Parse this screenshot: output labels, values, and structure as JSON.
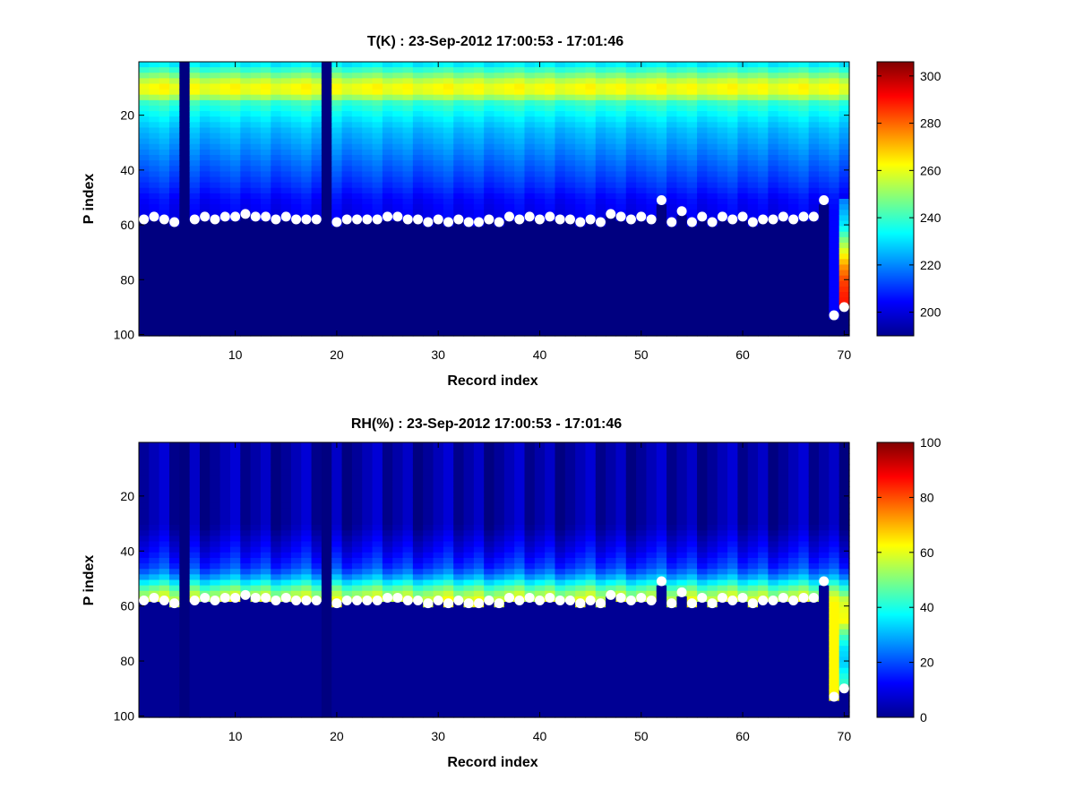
{
  "chart_data": [
    {
      "type": "heatmap",
      "title": "T(K) : 23-Sep-2012 17:00:53 - 17:01:46",
      "xlabel": "Record index",
      "ylabel": "P index",
      "xlim": [
        0.5,
        70.5
      ],
      "ylim": [
        0.5,
        100.5
      ],
      "y_reversed": true,
      "xticks": [
        10,
        20,
        30,
        40,
        50,
        60,
        70
      ],
      "yticks": [
        20,
        40,
        60,
        80,
        100
      ],
      "colormap": "jet",
      "clim": [
        190,
        306
      ],
      "colorbar_ticks": [
        200,
        220,
        240,
        260,
        280,
        300
      ],
      "missing_records": [
        5,
        19
      ],
      "field_profile": {
        "description": "approximate temperature (K) vs P index, above surface level",
        "p_index": [
          1,
          5,
          8,
          10,
          12,
          15,
          20,
          25,
          30,
          35,
          40,
          45,
          50,
          55,
          60
        ],
        "value": [
          232,
          248,
          260,
          263,
          258,
          240,
          232,
          226,
          222,
          218,
          214,
          210,
          205,
          203,
          203
        ]
      },
      "below_surface_value": 190,
      "record70_column": {
        "p_index": [
          50,
          60,
          65,
          70,
          75,
          80,
          85,
          90
        ],
        "value": [
          218,
          232,
          248,
          262,
          275,
          284,
          288,
          290
        ]
      },
      "surface_markers": {
        "x": [
          1,
          2,
          3,
          4,
          6,
          7,
          8,
          9,
          10,
          11,
          12,
          13,
          14,
          15,
          16,
          17,
          18,
          20,
          21,
          22,
          23,
          24,
          25,
          26,
          27,
          28,
          29,
          30,
          31,
          32,
          33,
          34,
          35,
          36,
          37,
          38,
          39,
          40,
          41,
          42,
          43,
          44,
          45,
          46,
          47,
          48,
          49,
          50,
          51,
          52,
          53,
          54,
          55,
          56,
          57,
          58,
          59,
          60,
          61,
          62,
          63,
          64,
          65,
          66,
          67,
          68,
          69,
          70
        ],
        "y": [
          58,
          57,
          58,
          59,
          58,
          57,
          58,
          57,
          57,
          56,
          57,
          57,
          58,
          57,
          58,
          58,
          58,
          59,
          58,
          58,
          58,
          58,
          57,
          57,
          58,
          58,
          59,
          58,
          59,
          58,
          59,
          59,
          58,
          59,
          57,
          58,
          57,
          58,
          57,
          58,
          58,
          59,
          58,
          59,
          56,
          57,
          58,
          57,
          58,
          51,
          59,
          55,
          59,
          57,
          59,
          57,
          58,
          57,
          59,
          58,
          58,
          57,
          58,
          57,
          57,
          51,
          93,
          90
        ]
      }
    },
    {
      "type": "heatmap",
      "title": "RH(%) : 23-Sep-2012 17:00:53 - 17:01:46",
      "xlabel": "Record index",
      "ylabel": "P index",
      "xlim": [
        0.5,
        70.5
      ],
      "ylim": [
        0.5,
        100.5
      ],
      "y_reversed": true,
      "xticks": [
        10,
        20,
        30,
        40,
        50,
        60,
        70
      ],
      "yticks": [
        20,
        40,
        60,
        80,
        100
      ],
      "colormap": "jet",
      "clim": [
        0,
        100
      ],
      "colorbar_ticks": [
        0,
        20,
        40,
        60,
        80,
        100
      ],
      "missing_records": [
        5,
        19
      ],
      "field_profile": {
        "description": "approximate relative humidity (%) vs P index, above surface level",
        "p_index": [
          1,
          30,
          35,
          40,
          45,
          48,
          50,
          52,
          54,
          56,
          58
        ],
        "value": [
          4,
          4,
          8,
          12,
          18,
          25,
          33,
          42,
          50,
          56,
          60
        ]
      },
      "below_surface_value": 2,
      "record70_column": {
        "p_index": [
          56,
          60,
          65,
          70,
          75,
          80,
          85,
          90
        ],
        "value": [
          55,
          60,
          62,
          45,
          35,
          32,
          40,
          45
        ]
      },
      "surface_markers": {
        "x": [
          1,
          2,
          3,
          4,
          6,
          7,
          8,
          9,
          10,
          11,
          12,
          13,
          14,
          15,
          16,
          17,
          18,
          20,
          21,
          22,
          23,
          24,
          25,
          26,
          27,
          28,
          29,
          30,
          31,
          32,
          33,
          34,
          35,
          36,
          37,
          38,
          39,
          40,
          41,
          42,
          43,
          44,
          45,
          46,
          47,
          48,
          49,
          50,
          51,
          52,
          53,
          54,
          55,
          56,
          57,
          58,
          59,
          60,
          61,
          62,
          63,
          64,
          65,
          66,
          67,
          68,
          69,
          70
        ],
        "y": [
          58,
          57,
          58,
          59,
          58,
          57,
          58,
          57,
          57,
          56,
          57,
          57,
          58,
          57,
          58,
          58,
          58,
          59,
          58,
          58,
          58,
          58,
          57,
          57,
          58,
          58,
          59,
          58,
          59,
          58,
          59,
          59,
          58,
          59,
          57,
          58,
          57,
          58,
          57,
          58,
          58,
          59,
          58,
          59,
          56,
          57,
          58,
          57,
          58,
          51,
          59,
          55,
          59,
          57,
          59,
          57,
          58,
          57,
          59,
          58,
          58,
          57,
          58,
          57,
          57,
          51,
          93,
          90
        ]
      }
    }
  ]
}
